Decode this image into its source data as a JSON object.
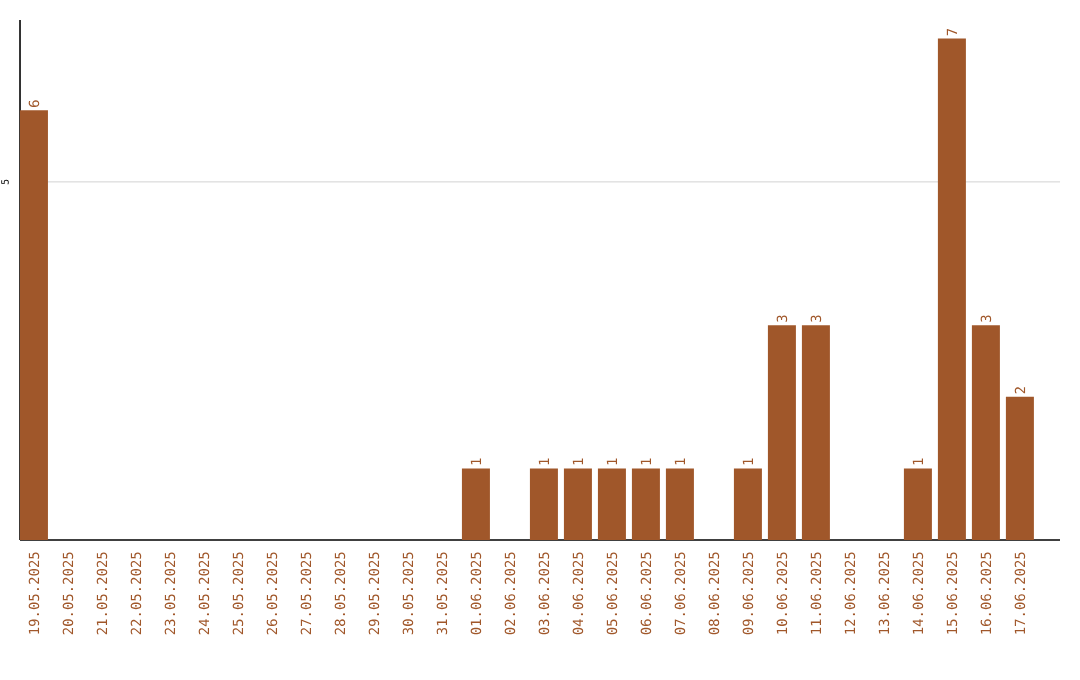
{
  "chart_data": {
    "type": "bar",
    "categories": [
      "19.05.2025",
      "20.05.2025",
      "21.05.2025",
      "22.05.2025",
      "23.05.2025",
      "24.05.2025",
      "25.05.2025",
      "26.05.2025",
      "27.05.2025",
      "28.05.2025",
      "29.05.2025",
      "30.05.2025",
      "31.05.2025",
      "01.06.2025",
      "02.06.2025",
      "03.06.2025",
      "04.06.2025",
      "05.06.2025",
      "06.06.2025",
      "07.06.2025",
      "08.06.2025",
      "09.06.2025",
      "10.06.2025",
      "11.06.2025",
      "12.06.2025",
      "13.06.2025",
      "14.06.2025",
      "15.06.2025",
      "16.06.2025",
      "17.06.2025"
    ],
    "values": [
      6,
      0,
      0,
      0,
      0,
      0,
      0,
      0,
      0,
      0,
      0,
      0,
      0,
      1,
      0,
      1,
      1,
      1,
      1,
      1,
      0,
      1,
      3,
      3,
      0,
      0,
      1,
      7,
      3,
      2
    ],
    "value_labels": [
      "6",
      null,
      null,
      null,
      null,
      null,
      null,
      null,
      null,
      null,
      null,
      null,
      null,
      "1",
      null,
      "1",
      "1",
      "1",
      "1",
      "1",
      null,
      "1",
      "3",
      "3",
      null,
      null,
      "1",
      "7",
      "3",
      "2"
    ],
    "color": "#a0572a",
    "ylim": [
      0,
      7.26
    ],
    "yticks": [
      5
    ],
    "grid": "y"
  }
}
